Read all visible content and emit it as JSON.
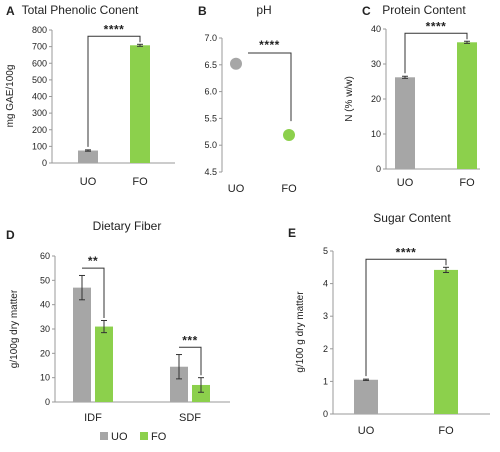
{
  "colors": {
    "uo": "#a6a6a6",
    "fo": "#8cd04c"
  },
  "chart_data": [
    {
      "panel": "A",
      "type": "bar",
      "title": "Total Phenolic Conent",
      "ylabel": "mg GAE/100g",
      "xlabel": "",
      "categories": [
        "UO",
        "FO"
      ],
      "values": [
        75,
        708
      ],
      "errors": [
        4,
        6
      ],
      "ylim": [
        0,
        800
      ],
      "yticks": [
        0,
        100,
        200,
        300,
        400,
        500,
        600,
        700,
        800
      ],
      "significance": [
        {
          "from": 0,
          "to": 1,
          "label": "****"
        }
      ]
    },
    {
      "panel": "B",
      "type": "scatter",
      "title": "pH",
      "ylabel": "",
      "xlabel": "",
      "categories": [
        "UO",
        "FO"
      ],
      "values": [
        6.52,
        5.19
      ],
      "ylim": [
        4.5,
        7.0
      ],
      "yticks": [
        4.5,
        5.0,
        5.5,
        6.0,
        6.5,
        7.0
      ],
      "significance": [
        {
          "from": 0,
          "to": 1,
          "label": "****"
        }
      ]
    },
    {
      "panel": "C",
      "type": "bar",
      "title": "Protein Content",
      "ylabel": "N (% w/w)",
      "xlabel": "",
      "categories": [
        "UO",
        "FO"
      ],
      "values": [
        26.2,
        36.2
      ],
      "errors": [
        0.3,
        0.3
      ],
      "ylim": [
        0,
        40
      ],
      "yticks": [
        0,
        10,
        20,
        30,
        40
      ],
      "significance": [
        {
          "from": 0,
          "to": 1,
          "label": "****"
        }
      ]
    },
    {
      "panel": "D",
      "type": "bar",
      "title": "Dietary Fiber",
      "ylabel": "g/100g dry matter",
      "xlabel": "",
      "categories": [
        "IDF",
        "SDF"
      ],
      "series": [
        {
          "name": "UO",
          "values": [
            47,
            14.5
          ],
          "errors": [
            5,
            5
          ]
        },
        {
          "name": "FO",
          "values": [
            31,
            7
          ],
          "errors": [
            2.5,
            3
          ]
        }
      ],
      "ylim": [
        0,
        60
      ],
      "yticks": [
        0,
        10,
        20,
        30,
        40,
        50,
        60
      ],
      "legend": "bottom",
      "significance": [
        {
          "category": 0,
          "label": "**"
        },
        {
          "category": 1,
          "label": "***"
        }
      ]
    },
    {
      "panel": "E",
      "type": "bar",
      "title": "Sugar Content",
      "ylabel": "g/100 g dry matter",
      "xlabel": "",
      "categories": [
        "UO",
        "FO"
      ],
      "values": [
        1.05,
        4.42
      ],
      "errors": [
        0.02,
        0.08
      ],
      "ylim": [
        0,
        5
      ],
      "yticks": [
        0,
        1,
        2,
        3,
        4,
        5
      ],
      "significance": [
        {
          "from": 0,
          "to": 1,
          "label": "****"
        }
      ]
    }
  ]
}
